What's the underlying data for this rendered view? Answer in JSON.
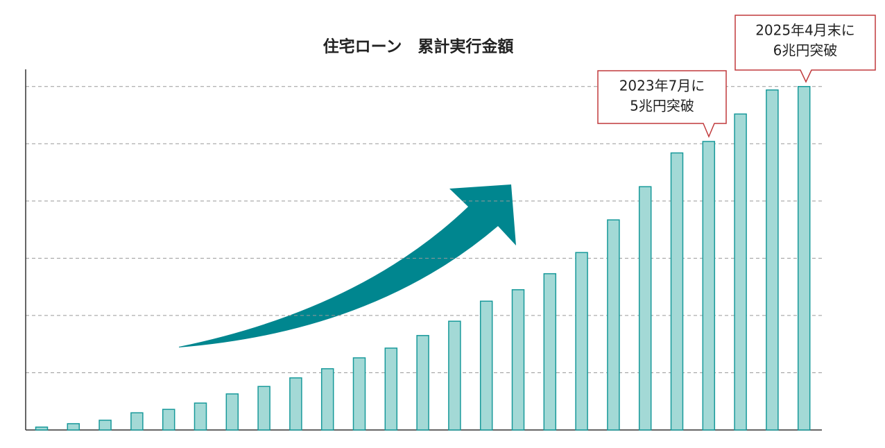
{
  "chart_data": {
    "type": "bar",
    "title": "住宅ローン　累計実行金額",
    "categories": [
      null,
      null,
      null,
      null,
      null,
      null,
      null,
      null,
      null,
      null,
      null,
      null,
      null,
      null,
      null,
      null,
      null,
      null,
      null,
      null,
      null,
      null,
      null,
      null,
      null
    ],
    "values": [
      0.05,
      0.11,
      0.17,
      0.3,
      0.36,
      0.47,
      0.63,
      0.76,
      0.91,
      1.07,
      1.26,
      1.43,
      1.65,
      1.9,
      2.25,
      2.45,
      2.73,
      3.1,
      3.67,
      4.25,
      4.84,
      5.04,
      5.52,
      5.94,
      6.0
    ],
    "color": "#a3d9d6",
    "edge_color": "#17999a",
    "ylim": [
      0,
      6.3
    ],
    "yticks": [
      1,
      2,
      3,
      4,
      5,
      6
    ],
    "grid": true,
    "annotations": [
      {
        "lines": [
          "2023年7月に",
          "5兆円突破"
        ]
      },
      {
        "lines": [
          "2025年4月末に",
          "6兆円突破"
        ]
      }
    ]
  }
}
